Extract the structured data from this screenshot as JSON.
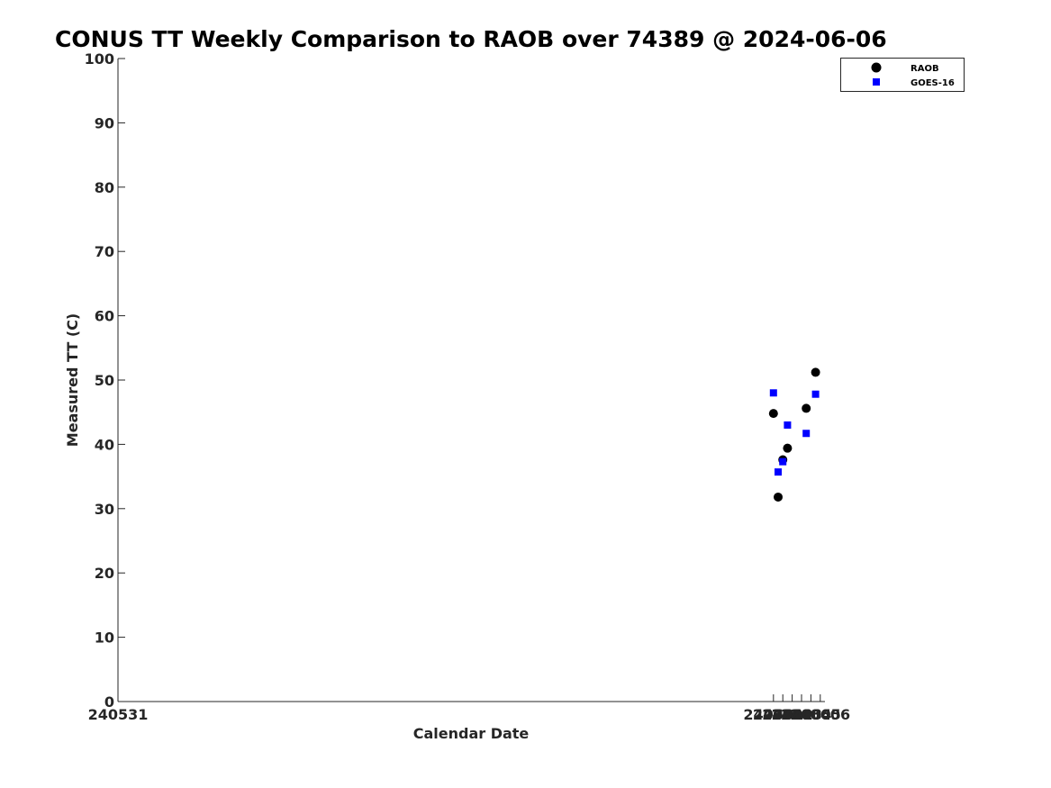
{
  "chart_data": {
    "type": "scatter",
    "title": "CONUS TT Weekly Comparison to RAOB over 74389 @ 2024-06-06",
    "xlabel": "Calendar Date",
    "ylabel": "Measured TT (C)",
    "xlim": [
      240531,
      240606.5
    ],
    "ylim": [
      0,
      100
    ],
    "x_ticks": [
      "240531",
      "240601",
      "240602",
      "240603",
      "240604",
      "240605",
      "240606"
    ],
    "y_ticks": [
      "0",
      "10",
      "20",
      "30",
      "40",
      "50",
      "60",
      "70",
      "80",
      "90",
      "100"
    ],
    "grid": false,
    "legend_position": "top-right",
    "series": [
      {
        "name": "RAOB",
        "marker": "circle",
        "color": "#000000",
        "points": [
          {
            "x": 240601.0,
            "y": 44.8
          },
          {
            "x": 240601.5,
            "y": 31.8
          },
          {
            "x": 240602.0,
            "y": 37.6
          },
          {
            "x": 240602.5,
            "y": 39.4
          },
          {
            "x": 240604.5,
            "y": 45.6
          },
          {
            "x": 240605.5,
            "y": 51.2
          }
        ]
      },
      {
        "name": "GOES-16",
        "marker": "square",
        "color": "#0000ff",
        "points": [
          {
            "x": 240601.0,
            "y": 48.0
          },
          {
            "x": 240601.5,
            "y": 35.7
          },
          {
            "x": 240602.0,
            "y": 37.3
          },
          {
            "x": 240602.5,
            "y": 43.0
          },
          {
            "x": 240604.5,
            "y": 41.7
          },
          {
            "x": 240605.5,
            "y": 47.8
          }
        ]
      }
    ]
  }
}
